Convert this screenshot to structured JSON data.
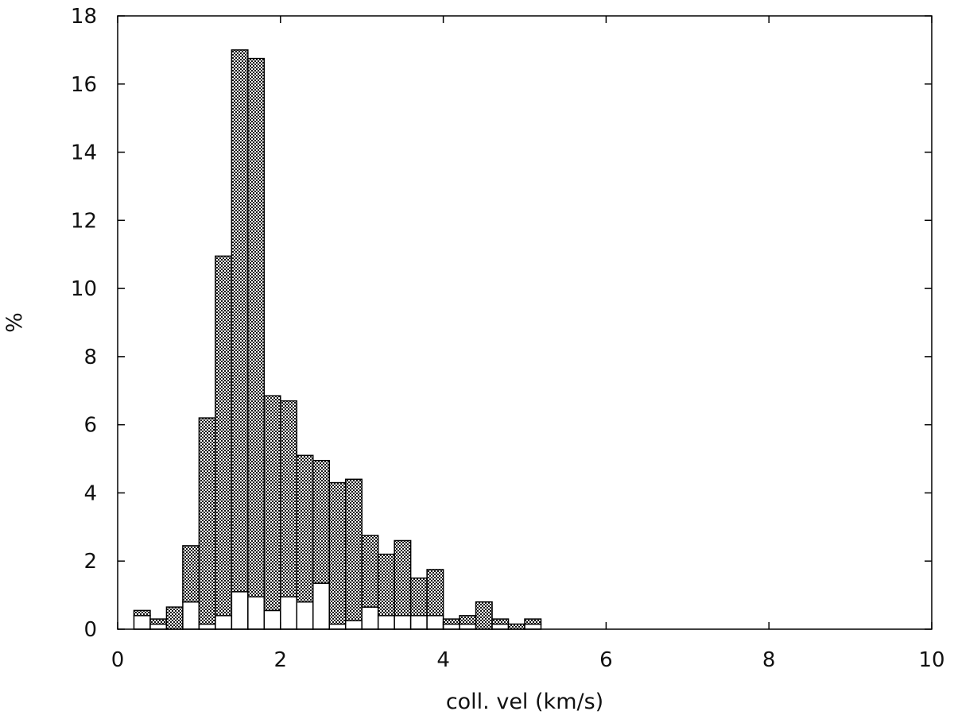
{
  "chart_data": {
    "type": "bar",
    "style": "stacked histogram",
    "xlabel": "coll. vel (km/s)",
    "ylabel": "%",
    "xlim": [
      0,
      10
    ],
    "ylim": [
      0,
      18
    ],
    "xticks": [
      "0",
      "2",
      "4",
      "6",
      "8",
      "10"
    ],
    "yticks": [
      "0",
      "2",
      "4",
      "6",
      "8",
      "10",
      "12",
      "14",
      "16",
      "18"
    ],
    "grid": false,
    "bin_width": 0.2,
    "x": [
      0.3,
      0.5,
      0.7,
      0.9,
      1.1,
      1.3,
      1.5,
      1.7,
      1.9,
      2.1,
      2.3,
      2.5,
      2.7,
      2.9,
      3.1,
      3.3,
      3.5,
      3.7,
      3.9,
      4.1,
      4.3,
      4.5,
      4.7,
      4.9,
      5.1
    ],
    "series": [
      {
        "fill": "white",
        "values": [
          0.4,
          0.15,
          0.0,
          0.8,
          0.15,
          0.4,
          1.1,
          0.95,
          0.55,
          0.95,
          0.8,
          1.35,
          0.15,
          0.25,
          0.65,
          0.4,
          0.4,
          0.4,
          0.4,
          0.15,
          0.15,
          0.0,
          0.15,
          0.0,
          0.15
        ]
      },
      {
        "fill": "dotted",
        "values": [
          0.15,
          0.15,
          0.65,
          1.65,
          6.05,
          10.55,
          15.9,
          15.8,
          6.3,
          5.75,
          4.3,
          3.6,
          4.15,
          4.15,
          2.1,
          1.8,
          2.2,
          1.1,
          1.35,
          0.15,
          0.25,
          0.8,
          0.15,
          0.15,
          0.15
        ]
      }
    ]
  }
}
